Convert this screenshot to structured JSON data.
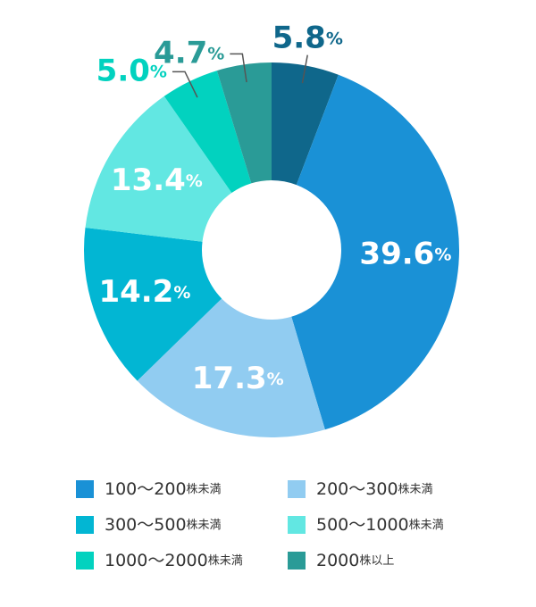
{
  "chart_data": {
    "type": "donut",
    "categories": [
      null,
      "100〜200株未満",
      "200〜300株未満",
      "300〜500株未満",
      "500〜1000株未満",
      "1000〜2000株未満",
      "2000株以上"
    ],
    "values": [
      5.8,
      39.6,
      17.3,
      14.2,
      13.4,
      5.0,
      4.7
    ],
    "value_labels": [
      "5.8%",
      "39.6%",
      "17.3%",
      "14.2%",
      "13.4%",
      "5.0%",
      "4.7%"
    ],
    "colors": [
      "#0f678b",
      "#1a91d6",
      "#91ccf1",
      "#02b6d3",
      "#62e7e2",
      "#02d2bf",
      "#2a9b97"
    ]
  }
}
